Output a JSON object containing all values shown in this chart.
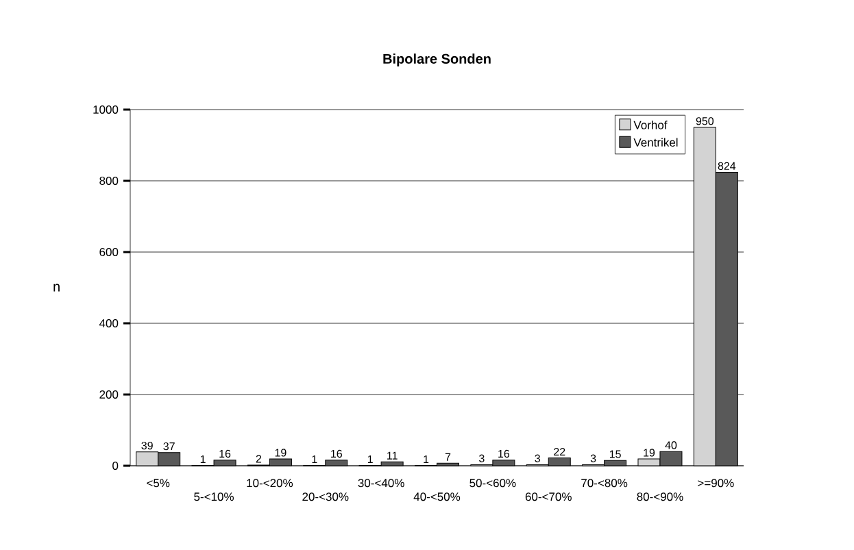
{
  "chart_data": {
    "type": "bar",
    "title": "Bipolare Sonden",
    "ylabel": "n",
    "categories": [
      "<5%",
      "5-<10%",
      "10-<20%",
      "20-<30%",
      "30-<40%",
      "40-<50%",
      "50-<60%",
      "60-<70%",
      "70-<80%",
      "80-<90%",
      ">=90%"
    ],
    "series": [
      {
        "name": "Vorhof",
        "color": "#d3d3d3",
        "values": [
          39,
          1,
          2,
          1,
          1,
          1,
          3,
          3,
          3,
          19,
          950
        ]
      },
      {
        "name": "Ventrikel",
        "color": "#595959",
        "values": [
          37,
          16,
          19,
          16,
          11,
          7,
          16,
          22,
          15,
          40,
          824
        ]
      }
    ],
    "ylim": [
      0,
      1000
    ],
    "yticks": [
      0,
      200,
      400,
      600,
      800,
      1000
    ],
    "grid": "y",
    "legend": "top right",
    "data_labels": true
  }
}
